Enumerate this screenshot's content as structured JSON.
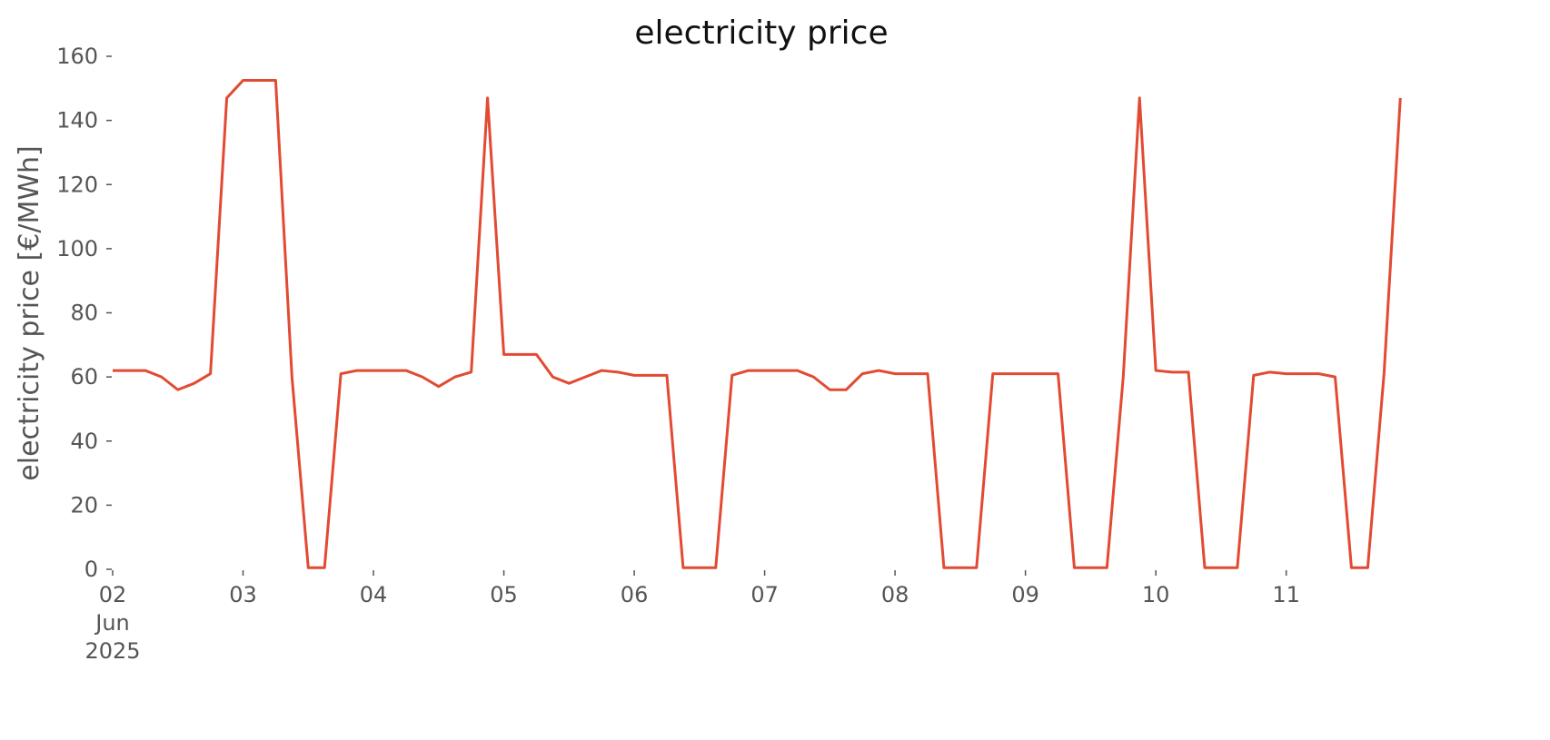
{
  "chart_data": {
    "type": "line",
    "title": "electricity price",
    "y_label": "electricity price [€/MWh]",
    "categories": [
      "02\nJun\n2025",
      null,
      null,
      null,
      null,
      null,
      null,
      null,
      "03",
      null,
      null,
      null,
      null,
      null,
      null,
      null,
      "04",
      null,
      null,
      null,
      null,
      null,
      null,
      null,
      "05",
      null,
      null,
      null,
      null,
      null,
      null,
      null,
      "06",
      null,
      null,
      null,
      null,
      null,
      null,
      null,
      "07",
      null,
      null,
      null,
      null,
      null,
      null,
      null,
      "08",
      null,
      null,
      null,
      null,
      null,
      null,
      null,
      "09",
      null,
      null,
      null,
      null,
      null,
      null,
      null,
      "10",
      null,
      null,
      null,
      null,
      null,
      null,
      null,
      "11",
      null,
      null,
      null,
      null,
      null,
      null,
      null
    ],
    "series": [
      {
        "name": "electricity price",
        "color": "#e24a33",
        "values": [
          62,
          62,
          62,
          60,
          56,
          58,
          61,
          147,
          152.5,
          152.5,
          152.5,
          60,
          0.5,
          0.5,
          61,
          62,
          62,
          62,
          62,
          60,
          57,
          60,
          61.5,
          147,
          67,
          67,
          67,
          60,
          58,
          60,
          62,
          61.5,
          60.5,
          60.5,
          60.5,
          0.5,
          0.5,
          0.5,
          60.5,
          62,
          62,
          62,
          62,
          60,
          56,
          56,
          61,
          62,
          61,
          61,
          61,
          0.5,
          0.5,
          0.5,
          61,
          61,
          61,
          61,
          61,
          0.5,
          0.5,
          0.5,
          60,
          147,
          62,
          61.5,
          61.5,
          0.5,
          0.5,
          0.5,
          60.5,
          61.5,
          61,
          61,
          61,
          60,
          0.5,
          0.5,
          61,
          147
        ]
      }
    ],
    "ylim": [
      0,
      160
    ],
    "yticks": [
      0,
      20,
      40,
      60,
      80,
      100,
      120,
      140,
      160
    ],
    "grid": false
  }
}
